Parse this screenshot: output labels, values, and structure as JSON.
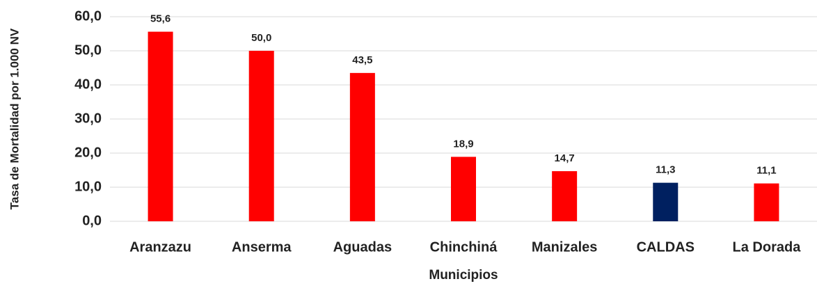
{
  "chart_data": {
    "type": "bar",
    "x_label": "Municipios",
    "y_label": "Tasa de Mortalidad por 1.000 NV",
    "categories": [
      "Aranzazu",
      "Anserma",
      "Aguadas",
      "Chinchiná",
      "Manizales",
      "CALDAS",
      "La Dorada"
    ],
    "values": [
      55.6,
      50.0,
      43.5,
      18.9,
      14.7,
      11.3,
      11.1
    ],
    "value_labels": [
      "55,6",
      "50,0",
      "43,5",
      "18,9",
      "14,7",
      "11,3",
      "11,1"
    ],
    "colors": [
      "#ff0000",
      "#ff0000",
      "#ff0000",
      "#ff0000",
      "#ff0000",
      "#002060",
      "#ff0000"
    ],
    "ylim": [
      0,
      60
    ],
    "yticks": [
      {
        "value": 0,
        "label": "0,0"
      },
      {
        "value": 10,
        "label": "10,0"
      },
      {
        "value": 20,
        "label": "20,0"
      },
      {
        "value": 30,
        "label": "30,0"
      },
      {
        "value": 40,
        "label": "40,0"
      },
      {
        "value": 50,
        "label": "50,0"
      },
      {
        "value": 60,
        "label": "60,0"
      }
    ],
    "grid": true
  }
}
